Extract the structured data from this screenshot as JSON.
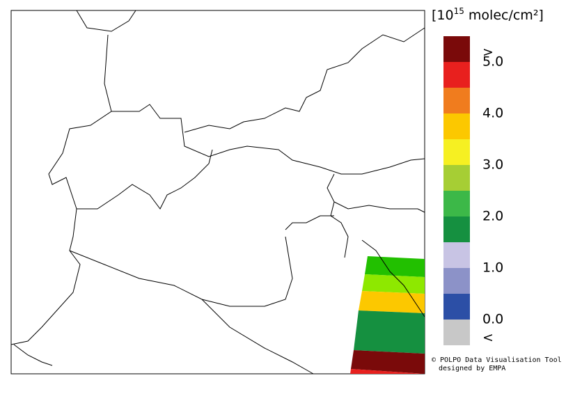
{
  "legend": {
    "unit_prefix": "[10",
    "unit_exponent": "15",
    "unit_suffix": " molec/cm²]",
    "colors": [
      "#7a0a0a",
      "#e8201e",
      "#f07c1e",
      "#fcc800",
      "#f6f022",
      "#a6ce34",
      "#3cb848",
      "#159040",
      "#c8c4e4",
      "#8c92c8",
      "#2c4fa6",
      "#c8c8c8"
    ],
    "labels": [
      ">",
      "5.0",
      "4.0",
      "3.0",
      "2.0",
      "1.0",
      "0.0",
      "<"
    ]
  },
  "credit": {
    "line1": "© POLPO Data Visualisation Tool",
    "line2": "designed by EMPA"
  }
}
